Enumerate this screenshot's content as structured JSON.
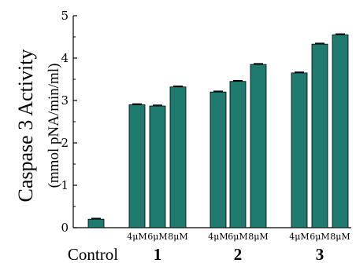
{
  "chart_data": {
    "type": "bar",
    "ylabel": "Caspase 3 Activity",
    "ylabel_units": "(mmol pNA/min/ml)",
    "ylim": [
      0,
      5
    ],
    "yticks": [
      "0",
      "1",
      "2",
      "3",
      "4",
      "5"
    ],
    "bar_color": "#1f7a70",
    "categories": [
      "",
      "4μM",
      "6μM",
      "8μM",
      "4μM",
      "6μM",
      "8μM",
      "4μM",
      "6μM",
      "8μM"
    ],
    "values": [
      0.2,
      2.9,
      2.87,
      3.32,
      3.2,
      3.45,
      3.85,
      3.65,
      4.33,
      4.55
    ],
    "groups": [
      {
        "label": "Control",
        "bold": false
      },
      {
        "label": "1",
        "bold": true
      },
      {
        "label": "2",
        "bold": true
      },
      {
        "label": "3",
        "bold": true
      }
    ]
  }
}
